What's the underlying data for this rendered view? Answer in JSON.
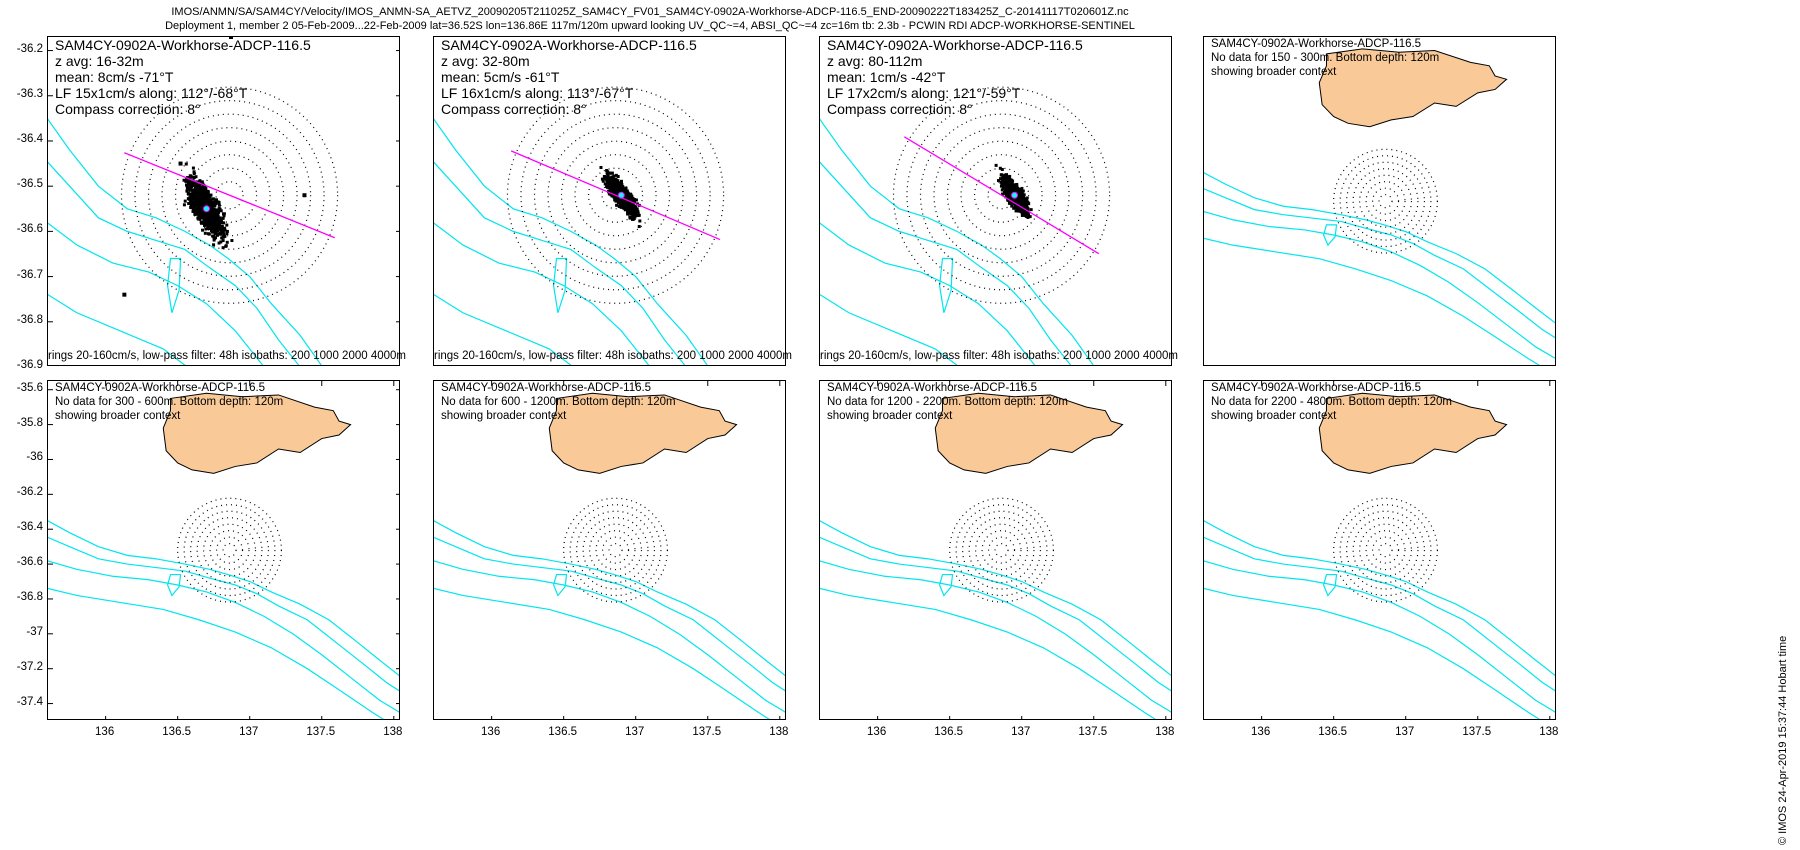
{
  "header": {
    "line1": "IMOS/ANMN/SA/SAM4CY/Velocity/IMOS_ANMN-SA_AETVZ_20090205T211025Z_SAM4CY_FV01_SAM4CY-0902A-Workhorse-ADCP-116.5_END-20090222T183425Z_C-20141117T020601Z.nc",
    "line2": "Deployment 1, member 2 05-Feb-2009...22-Feb-2009 lat=36.52S lon=136.86E 117m/120m upward looking UV_QC~=4, ABSI_QC~=4 zc=16m tb: 2.3b - PCWIN RDI ADCP-WORKHORSE-SENTINEL"
  },
  "stamp": "© IMOS 24-Apr-2019 15:37:44 Hobart time",
  "colors": {
    "isobath": "#00e5ee",
    "land": "#f9c998",
    "scatter": "#000000",
    "principal_axis": "#ff00ff",
    "mean": "#00ffff"
  },
  "chart_data": [
    {
      "type": "scatter",
      "title": "SAM4CY-0902A-Workhorse-ADCP-116.5",
      "lines": [
        "z avg: 16-32m",
        "mean: 8cm/s -71°T",
        "LF 15x1cm/s along: 112°/-68°T",
        "Compass correction: 8°"
      ],
      "footer": "rings 20-160cm/s, low-pass filter: 48h isobaths: 200 1000 2000 4000m",
      "xlim": [
        135.6,
        138.05
      ],
      "ylim": [
        -36.9,
        -36.17
      ],
      "yticks": [
        -36.2,
        -36.3,
        -36.4,
        -36.5,
        -36.6,
        -36.7,
        -36.8,
        -36.9
      ],
      "rings_cm_s": [
        20,
        40,
        60,
        80,
        100,
        120,
        140,
        160
      ],
      "principal_axis_deg_true": 112,
      "cloud": {
        "lon": 136.7,
        "lat": -36.55,
        "spread_lon": 0.2,
        "spread_lat": 0.07,
        "outliers": [
          [
            136.87,
            -36.17
          ],
          [
            136.13,
            -36.74
          ],
          [
            137.38,
            -36.52
          ],
          [
            136.52,
            -36.45
          ]
        ]
      }
    },
    {
      "type": "scatter",
      "title": "SAM4CY-0902A-Workhorse-ADCP-116.5",
      "lines": [
        "z avg: 32-80m",
        "mean: 5cm/s -61°T",
        "LF 16x1cm/s along: 113°/-67°T",
        "Compass correction: 8°"
      ],
      "footer": "rings 20-160cm/s, low-pass filter: 48h isobaths: 200 1000 2000 4000m",
      "xlim": [
        135.6,
        138.05
      ],
      "ylim": [
        -36.9,
        -36.17
      ],
      "rings_cm_s": [
        20,
        40,
        60,
        80,
        100,
        120,
        140,
        160
      ],
      "principal_axis_deg_true": 113,
      "cloud": {
        "lon": 136.9,
        "lat": -36.52,
        "spread_lon": 0.17,
        "spread_lat": 0.04,
        "outliers": []
      }
    },
    {
      "type": "scatter",
      "title": "SAM4CY-0902A-Workhorse-ADCP-116.5",
      "lines": [
        "z avg: 80-112m",
        "mean: 1cm/s -42°T",
        "LF 17x2cm/s along: 121°/-59°T",
        "Compass correction: 8°"
      ],
      "footer": "rings 20-160cm/s, low-pass filter: 48h isobaths: 200 1000 2000 4000m",
      "xlim": [
        135.6,
        138.05
      ],
      "ylim": [
        -36.9,
        -36.17
      ],
      "rings_cm_s": [
        20,
        40,
        60,
        80,
        100,
        120,
        140,
        160
      ],
      "principal_axis_deg_true": 121,
      "cloud": {
        "lon": 136.95,
        "lat": -36.52,
        "spread_lon": 0.14,
        "spread_lat": 0.04,
        "outliers": []
      }
    },
    {
      "type": "scatter",
      "title": "SAM4CY-0902A-Workhorse-ADCP-116.5",
      "lines": [
        "No data for 150 - 300m. Bottom depth: 120m",
        "showing broader context"
      ],
      "xlim": [
        135.6,
        138.05
      ],
      "ylim": [
        -37.5,
        -35.55
      ]
    },
    {
      "type": "scatter",
      "title": "SAM4CY-0902A-Workhorse-ADCP-116.5",
      "lines": [
        "No data for 300 - 600m. Bottom depth: 120m",
        "showing broader context"
      ],
      "xlim": [
        135.6,
        138.05
      ],
      "ylim": [
        -37.5,
        -35.55
      ],
      "yticks": [
        -35.6,
        -35.8,
        -36,
        -36.2,
        -36.4,
        -36.6,
        -36.8,
        -37,
        -37.2,
        -37.4
      ],
      "xticks": [
        136,
        136.5,
        137,
        137.5,
        138
      ]
    },
    {
      "type": "scatter",
      "title": "SAM4CY-0902A-Workhorse-ADCP-116.5",
      "lines": [
        "No data for 600 - 1200m. Bottom depth: 120m",
        "showing broader context"
      ],
      "xlim": [
        135.6,
        138.05
      ],
      "ylim": [
        -37.5,
        -35.55
      ],
      "xticks": [
        136,
        136.5,
        137,
        137.5,
        138
      ]
    },
    {
      "type": "scatter",
      "title": "SAM4CY-0902A-Workhorse-ADCP-116.5",
      "lines": [
        "No data for 1200 - 2200m. Bottom depth: 120m",
        "showing broader context"
      ],
      "xlim": [
        135.6,
        138.05
      ],
      "ylim": [
        -37.5,
        -35.55
      ],
      "xticks": [
        136,
        136.5,
        137,
        137.5,
        138
      ]
    },
    {
      "type": "scatter",
      "title": "SAM4CY-0902A-Workhorse-ADCP-116.5",
      "lines": [
        "No data for 2200 - 4800m. Bottom depth: 120m",
        "showing broader context"
      ],
      "xlim": [
        135.6,
        138.05
      ],
      "ylim": [
        -37.5,
        -35.55
      ],
      "xticks": [
        136,
        136.5,
        137,
        137.5,
        138
      ]
    }
  ]
}
